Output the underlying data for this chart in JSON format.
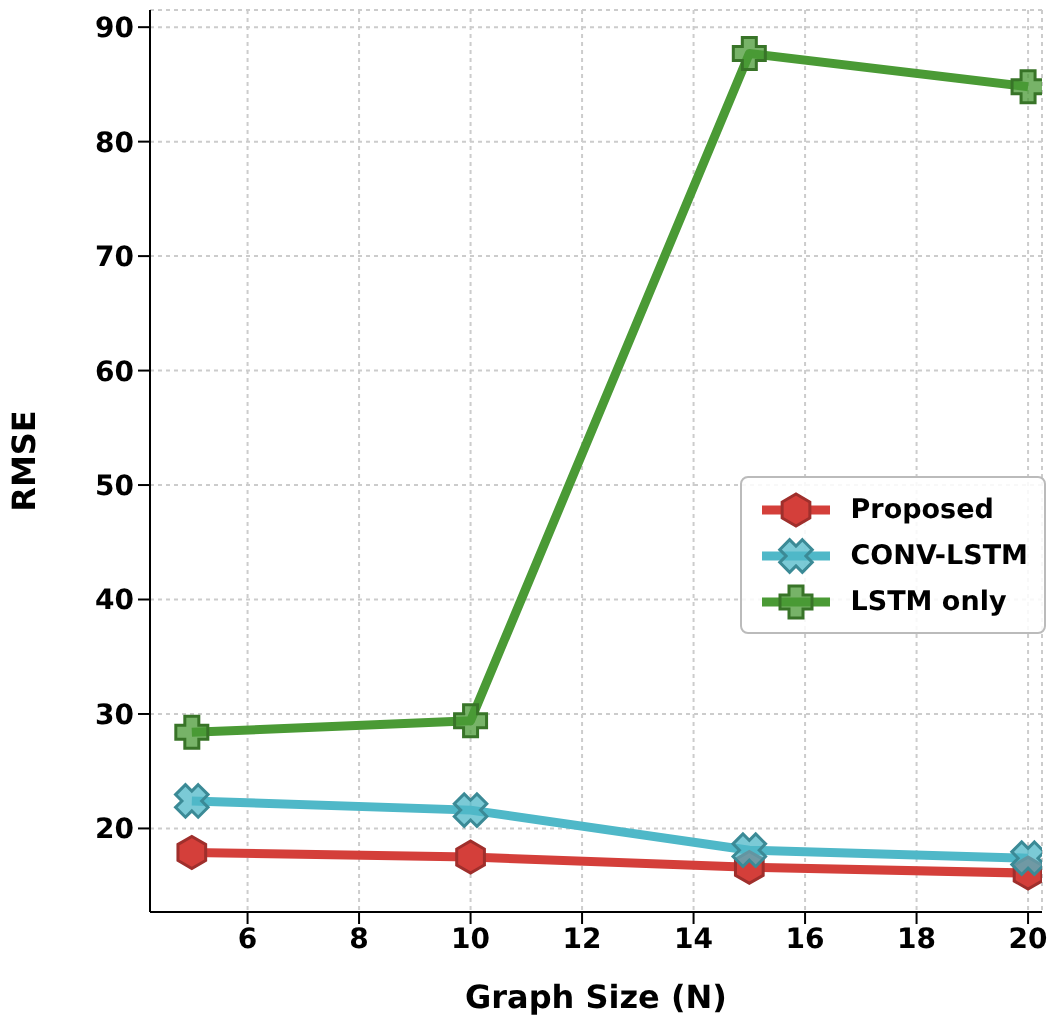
{
  "chart_data": {
    "type": "line",
    "xlabel": "Graph Size (N)",
    "ylabel": "RMSE",
    "x": [
      5,
      10,
      15,
      20
    ],
    "series": [
      {
        "name": "Proposed",
        "color": "#d43f3a",
        "values": [
          17.9,
          17.5,
          16.6,
          16.1
        ],
        "marker": "circle"
      },
      {
        "name": "CONV-LSTM",
        "color": "#4fb8c8",
        "values": [
          22.4,
          21.6,
          18.1,
          17.4
        ],
        "marker": "cross"
      },
      {
        "name": "LSTM only",
        "color": "#4a9a35",
        "values": [
          28.4,
          29.4,
          87.7,
          84.8
        ],
        "marker": "cross"
      }
    ],
    "xlim": [
      4.25,
      20.25
    ],
    "xticks": [
      6,
      8,
      10,
      12,
      14,
      16,
      18,
      20
    ],
    "ylim": [
      12.7,
      91.5
    ],
    "yticks": [
      20,
      30,
      40,
      50,
      60,
      70,
      80,
      90
    ],
    "grid": true,
    "legend": "right"
  }
}
